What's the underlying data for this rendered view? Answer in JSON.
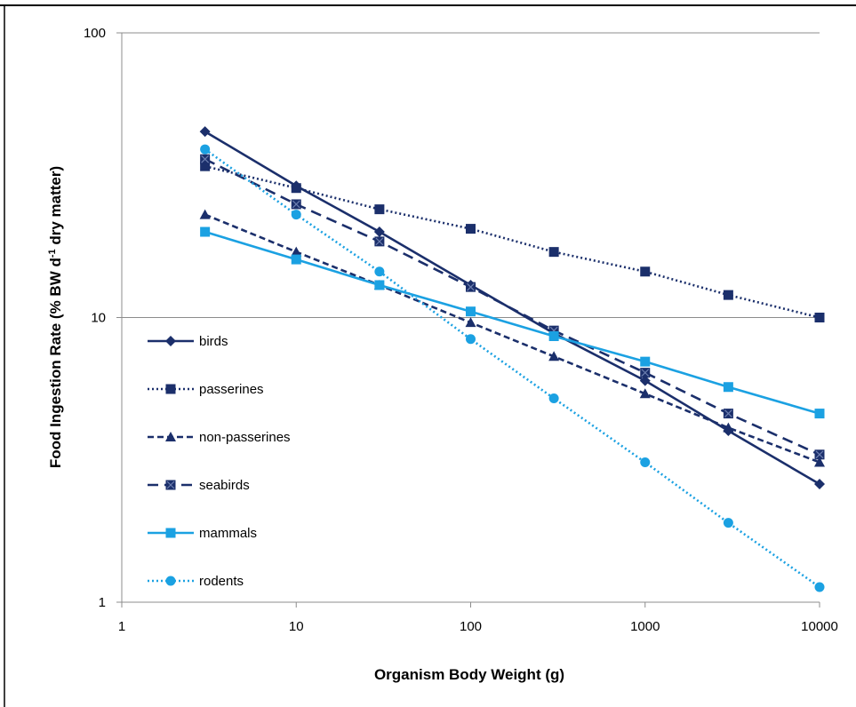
{
  "chart_data": {
    "type": "line",
    "x_scale": "log",
    "y_scale": "log",
    "xlabel": "Organism Body Weight (g)",
    "ylabel_parts": [
      "Food Ingestion Rate (% BW d",
      "-1",
      " dry matter)"
    ],
    "xlim": [
      1,
      10000
    ],
    "ylim": [
      1,
      100
    ],
    "x_ticks": [
      "1",
      "10",
      "100",
      "1000",
      "10000"
    ],
    "y_ticks": [
      "1",
      "10",
      "100"
    ],
    "grid": "horizontal major gridlines",
    "legend_position": "left, inside plot",
    "series": [
      {
        "name": "birds",
        "marker": "diamond",
        "dash": "solid",
        "color": "#1b2f6b",
        "x": [
          3,
          10,
          30,
          100,
          300,
          1000,
          3000,
          10000
        ],
        "y": [
          45,
          29,
          20,
          13,
          8.8,
          6.0,
          4.0,
          2.6
        ]
      },
      {
        "name": "passerines",
        "marker": "square",
        "dash": "dotted",
        "color": "#1b2f6b",
        "x": [
          3,
          10,
          30,
          100,
          300,
          1000,
          3000,
          10000
        ],
        "y": [
          34,
          28.5,
          24,
          20.5,
          17,
          14.5,
          12,
          10
        ]
      },
      {
        "name": "non-passerines",
        "marker": "triangle",
        "dash": "dashed",
        "color": "#1b2f6b",
        "x": [
          3,
          10,
          30,
          100,
          300,
          1000,
          3000,
          10000
        ],
        "y": [
          23,
          17,
          13,
          9.6,
          7.3,
          5.4,
          4.1,
          3.1
        ]
      },
      {
        "name": "seabirds",
        "marker": "square-x",
        "dash": "longdash",
        "color": "#1b2f6b",
        "x": [
          3,
          10,
          30,
          100,
          300,
          1000,
          3000,
          10000
        ],
        "y": [
          36,
          25,
          18.5,
          12.8,
          9.0,
          6.4,
          4.6,
          3.3
        ]
      },
      {
        "name": "mammals",
        "marker": "square",
        "dash": "solid",
        "color": "#1ba1e2",
        "x": [
          3,
          10,
          30,
          100,
          300,
          1000,
          3000,
          10000
        ],
        "y": [
          20,
          16,
          13,
          10.5,
          8.6,
          7.0,
          5.7,
          4.6
        ]
      },
      {
        "name": "rodents",
        "marker": "circle",
        "dash": "dotted",
        "color": "#1ba1e2",
        "x": [
          3,
          10,
          30,
          100,
          300,
          1000,
          3000,
          10000
        ],
        "y": [
          39,
          23,
          14.5,
          8.4,
          5.2,
          3.1,
          1.9,
          1.13
        ]
      }
    ]
  }
}
